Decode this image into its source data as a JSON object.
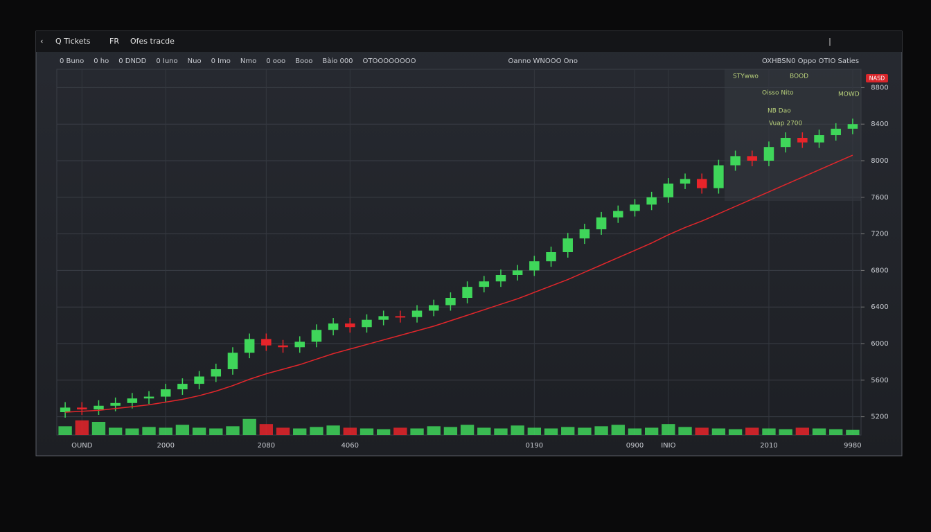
{
  "ui": {
    "app_title": "Q Tickets",
    "tab": "FR",
    "subtitle": "Ofes tracde",
    "toolbar": [
      "0 Buno",
      "0 ho",
      "0 DNDD",
      "0 Iuno",
      "Nuo",
      "0 Imo",
      "Nmo",
      "0 ooo",
      "Booo",
      "Bàio 000",
      "OTOOOOOOOO",
      "Oanno WNOOO Ono"
    ],
    "top_right": "OXHBSN0 Oppo OTIO Saties",
    "info": [
      "STYwwo",
      "BOOD",
      "Oisso Nito",
      "MOWD",
      "NB Dao",
      "Vuap 2700"
    ],
    "badge": "NASD"
  },
  "chart_data": {
    "type": "candlestick",
    "categories": [
      null,
      "OUND",
      null,
      null,
      null,
      null,
      "2000",
      null,
      null,
      null,
      null,
      null,
      "2080",
      null,
      null,
      null,
      null,
      "4060",
      null,
      null,
      null,
      null,
      null,
      null,
      null,
      null,
      null,
      null,
      "0190",
      null,
      null,
      null,
      null,
      null,
      "0900",
      null,
      "INIO",
      null,
      null,
      null,
      null,
      null,
      "2010",
      null,
      null,
      null,
      null,
      "9980"
    ],
    "open": [
      5250,
      5300,
      5280,
      5320,
      5350,
      5400,
      5420,
      5500,
      5560,
      5640,
      5720,
      5900,
      6050,
      5980,
      5960,
      6020,
      6150,
      6220,
      6180,
      6260,
      6300,
      6290,
      6360,
      6420,
      6500,
      6620,
      6680,
      6750,
      6800,
      6900,
      7000,
      7150,
      7250,
      7380,
      7450,
      7520,
      7600,
      7750,
      7800,
      7700,
      7950,
      8050,
      8000,
      8150,
      8250,
      8200,
      8280,
      8350
    ],
    "high": [
      5360,
      5360,
      5380,
      5410,
      5460,
      5480,
      5560,
      5620,
      5700,
      5780,
      5960,
      6110,
      6110,
      6040,
      6080,
      6210,
      6280,
      6280,
      6320,
      6360,
      6360,
      6420,
      6480,
      6560,
      6680,
      6740,
      6810,
      6860,
      6960,
      7060,
      7210,
      7310,
      7440,
      7510,
      7580,
      7660,
      7810,
      7860,
      7860,
      8010,
      8110,
      8110,
      8210,
      8310,
      8310,
      8340,
      8410,
      8460
    ],
    "low": [
      5190,
      5220,
      5220,
      5260,
      5290,
      5340,
      5360,
      5440,
      5500,
      5580,
      5660,
      5840,
      5920,
      5900,
      5900,
      5960,
      6090,
      6120,
      6120,
      6200,
      6230,
      6230,
      6300,
      6360,
      6440,
      6560,
      6620,
      6690,
      6740,
      6840,
      6940,
      7090,
      7190,
      7320,
      7390,
      7460,
      7540,
      7690,
      7640,
      7640,
      7890,
      7940,
      7940,
      8090,
      8140,
      8140,
      8220,
      8290
    ],
    "close": [
      5300,
      5280,
      5320,
      5350,
      5400,
      5420,
      5500,
      5560,
      5640,
      5720,
      5900,
      6050,
      5980,
      5960,
      6020,
      6150,
      6220,
      6180,
      6260,
      6300,
      6290,
      6360,
      6420,
      6500,
      6620,
      6680,
      6750,
      6800,
      6900,
      7000,
      7150,
      7250,
      7380,
      7450,
      7520,
      7600,
      7750,
      7800,
      7700,
      7950,
      8050,
      8000,
      8150,
      8250,
      8200,
      8280,
      8350,
      8400
    ],
    "ma": [
      5250,
      5260,
      5270,
      5290,
      5310,
      5330,
      5360,
      5390,
      5430,
      5480,
      5540,
      5610,
      5670,
      5720,
      5770,
      5830,
      5890,
      5940,
      5990,
      6040,
      6090,
      6140,
      6190,
      6250,
      6310,
      6370,
      6430,
      6490,
      6560,
      6630,
      6700,
      6780,
      6860,
      6940,
      7020,
      7100,
      7190,
      7270,
      7340,
      7420,
      7500,
      7580,
      7660,
      7740,
      7820,
      7900,
      7980,
      8060
    ],
    "volume": [
      12,
      20,
      18,
      10,
      9,
      11,
      10,
      14,
      10,
      9,
      12,
      22,
      15,
      10,
      9,
      11,
      13,
      10,
      9,
      8,
      10,
      9,
      12,
      11,
      14,
      10,
      9,
      13,
      10,
      9,
      11,
      10,
      12,
      14,
      9,
      10,
      15,
      11,
      10,
      9,
      8,
      10,
      9,
      8,
      10,
      9,
      8,
      7
    ],
    "ylim": [
      5000,
      9000
    ],
    "yticks": [
      5200,
      5600,
      6000,
      6400,
      6800,
      7200,
      7600,
      8000,
      8400,
      8800
    ],
    "y2lim": [
      0,
      500
    ],
    "up_color": "#3fd65a",
    "down_color": "#e8242a",
    "ma_color": "#e3262b",
    "grid": true
  }
}
